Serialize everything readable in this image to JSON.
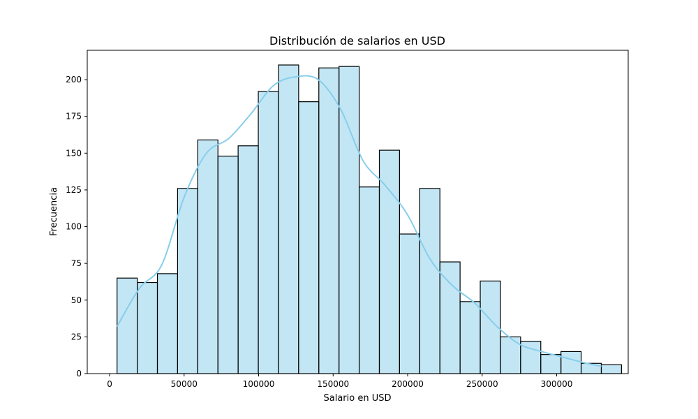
{
  "chart_data": {
    "type": "bar",
    "subtype": "histogram",
    "title": "Distribución de salarios en USD",
    "xlabel": "Salario en USD",
    "ylabel": "Frecuencia",
    "xlim": [
      -15000,
      348000
    ],
    "ylim": [
      0,
      220
    ],
    "xticks": [
      0,
      50000,
      100000,
      150000,
      200000,
      250000,
      300000
    ],
    "yticks": [
      0,
      25,
      50,
      75,
      100,
      125,
      150,
      175,
      200
    ],
    "bin_start": 5000,
    "bin_width": 13540,
    "values": [
      65,
      62,
      68,
      126,
      159,
      148,
      155,
      192,
      210,
      185,
      208,
      209,
      127,
      152,
      95,
      126,
      76,
      49,
      63,
      25,
      22,
      13,
      15,
      7,
      6
    ],
    "kde": {
      "x": [
        5000,
        20000,
        35000,
        50000,
        65000,
        80000,
        95000,
        110000,
        125000,
        140000,
        155000,
        170000,
        185000,
        200000,
        215000,
        230000,
        245000,
        260000,
        275000,
        290000,
        305000,
        320000,
        330000
      ],
      "y": [
        32,
        58,
        74,
        120,
        150,
        160,
        177,
        196,
        202,
        200,
        180,
        145,
        128,
        108,
        78,
        60,
        48,
        32,
        20,
        15,
        11,
        7,
        5
      ]
    },
    "colors": {
      "bar_fill": "#87ceeb",
      "bar_edge": "#000000",
      "kde_line": "#87ceeb"
    },
    "grid": false,
    "legend": false
  }
}
